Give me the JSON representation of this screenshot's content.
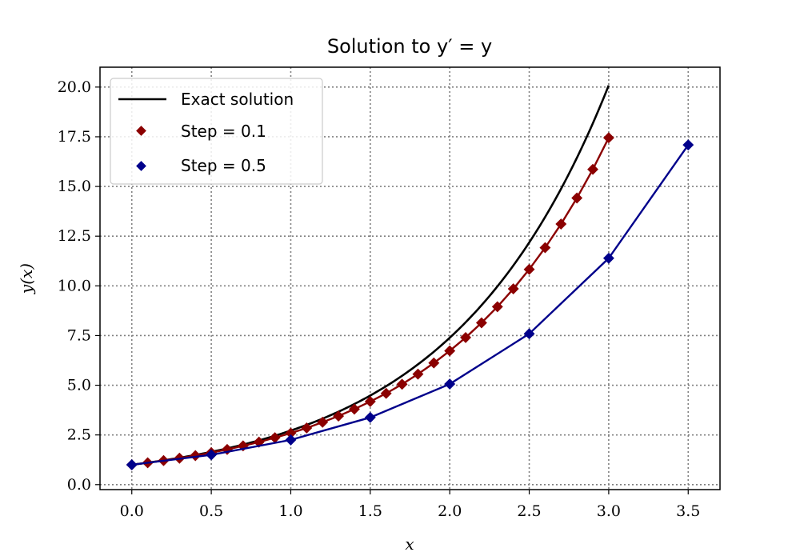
{
  "chart_data": {
    "type": "line",
    "title": "Solution to y′ = y",
    "xlabel": "x",
    "ylabel": "y(x)",
    "xlim": [
      -0.2,
      3.7
    ],
    "ylim": [
      -0.25,
      21.0
    ],
    "xticks": [
      0.0,
      0.5,
      1.0,
      1.5,
      2.0,
      2.5,
      3.0,
      3.5
    ],
    "xtick_labels": [
      "0.0",
      "0.5",
      "1.0",
      "1.5",
      "2.0",
      "2.5",
      "3.0",
      "3.5"
    ],
    "yticks": [
      0.0,
      2.5,
      5.0,
      7.5,
      10.0,
      12.5,
      15.0,
      17.5,
      20.0
    ],
    "ytick_labels": [
      "0.0",
      "2.5",
      "5.0",
      "7.5",
      "10.0",
      "12.5",
      "15.0",
      "17.5",
      "20.0"
    ],
    "grid": true,
    "legend_position": "top-left",
    "exact_solution": {
      "name": "Exact solution",
      "color": "#000000",
      "x_range": [
        0.0,
        3.0
      ],
      "function": "exp(x)"
    },
    "series": [
      {
        "name": "Step = 0.1",
        "color": "#8b0000",
        "x": [
          0.0,
          0.1,
          0.2,
          0.3,
          0.4,
          0.5,
          0.6,
          0.7,
          0.8,
          0.9,
          1.0,
          1.1,
          1.2,
          1.3,
          1.4,
          1.5,
          1.6,
          1.7,
          1.8,
          1.9,
          2.0,
          2.1,
          2.2,
          2.3,
          2.4,
          2.5,
          2.6,
          2.7,
          2.8,
          2.9,
          3.0
        ],
        "y": [
          1.0,
          1.1,
          1.21,
          1.33,
          1.46,
          1.61,
          1.77,
          1.95,
          2.14,
          2.36,
          2.59,
          2.85,
          3.14,
          3.45,
          3.8,
          4.18,
          4.59,
          5.05,
          5.56,
          6.12,
          6.73,
          7.4,
          8.14,
          8.95,
          9.85,
          10.83,
          11.92,
          13.11,
          14.42,
          15.86,
          17.45
        ]
      },
      {
        "name": "Step = 0.5",
        "color": "#00008b",
        "x": [
          0.0,
          0.5,
          1.0,
          1.5,
          2.0,
          2.5,
          3.0,
          3.5
        ],
        "y": [
          1.0,
          1.5,
          2.25,
          3.38,
          5.06,
          7.59,
          11.39,
          17.09
        ]
      }
    ]
  }
}
